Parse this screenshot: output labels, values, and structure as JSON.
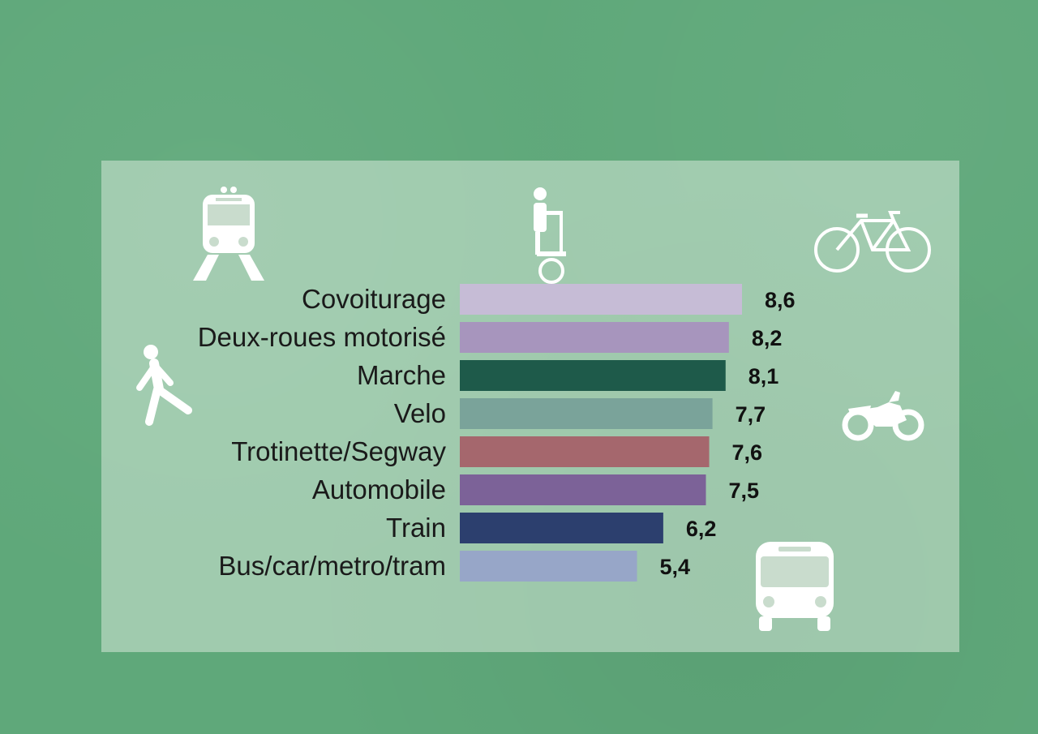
{
  "chart_data": {
    "type": "bar",
    "orientation": "horizontal",
    "categories": [
      "Covoiturage",
      "Deux-roues motorisé",
      "Marche",
      "Velo",
      "Trotinette/Segway",
      "Automobile",
      "Train",
      "Bus/car/metro/tram"
    ],
    "values": [
      8.6,
      8.2,
      8.1,
      7.7,
      7.6,
      7.5,
      6.2,
      5.4
    ],
    "value_labels": [
      "8,6",
      "8,2",
      "8,1",
      "7,7",
      "7,6",
      "7,5",
      "6,2",
      "5,4"
    ],
    "bar_colors": [
      "#c6bcd6",
      "#a795bd",
      "#1e5a4a",
      "#7aa39a",
      "#a5676d",
      "#7c6298",
      "#2c3f6e",
      "#97a6c8"
    ],
    "xlim": [
      0,
      8.6
    ],
    "grid": false,
    "title": "",
    "xlabel": "",
    "ylabel": ""
  },
  "icons": [
    "train-icon",
    "segway-icon",
    "bicycle-icon",
    "pedestrian-icon",
    "motorcycle-icon",
    "bus-icon"
  ],
  "colors": {
    "background": "#5fa87a",
    "panel": "#d6e8d8",
    "icon": "#ffffff"
  }
}
